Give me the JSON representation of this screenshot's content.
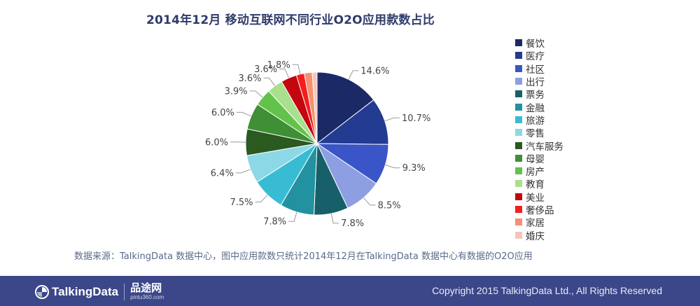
{
  "chart_data": {
    "type": "pie",
    "title": "2014年12月 移动互联网不同行业O2O应用款数占比",
    "categories": [
      "餐饮",
      "医疗",
      "社区",
      "出行",
      "票务",
      "金融",
      "旅游",
      "零售",
      "汽车服务",
      "母婴",
      "房产",
      "教育",
      "美业",
      "奢侈品",
      "家居",
      "婚庆"
    ],
    "values": [
      14.6,
      10.7,
      9.3,
      8.5,
      7.8,
      7.8,
      7.5,
      6.4,
      6.0,
      6.0,
      3.9,
      3.6,
      3.6,
      1.8,
      1.8,
      1.1
    ],
    "labels": [
      "14.6%",
      "10.7%",
      "9.3%",
      "8.5%",
      "7.8%",
      "7.8%",
      "7.5%",
      "6.4%",
      "6.0%",
      "6.0%",
      "3.9%",
      "3.6%",
      "3.6%",
      "1.8%",
      "",
      ""
    ],
    "colors": [
      "#1b2a66",
      "#243b92",
      "#3a55c8",
      "#8d9fe2",
      "#17606a",
      "#2392a0",
      "#38bcd4",
      "#8dd8e6",
      "#2a5a20",
      "#3f8f34",
      "#63c24a",
      "#a8e08d",
      "#c4060f",
      "#f21e1e",
      "#f49070",
      "#f5c4bc"
    ],
    "legend_position": "right"
  },
  "source_note": "数据来源：TalkingData 数据中心，图中应用款数只统计2014年12月在TalkingData 数据中心有数据的O2O应用",
  "footer": {
    "brand": "TalkingData",
    "partner_name": "品途网",
    "partner_url": "pintu360.com",
    "copyright": "Copyright 2015 TalkingData Ltd., All Rights Reserved"
  }
}
